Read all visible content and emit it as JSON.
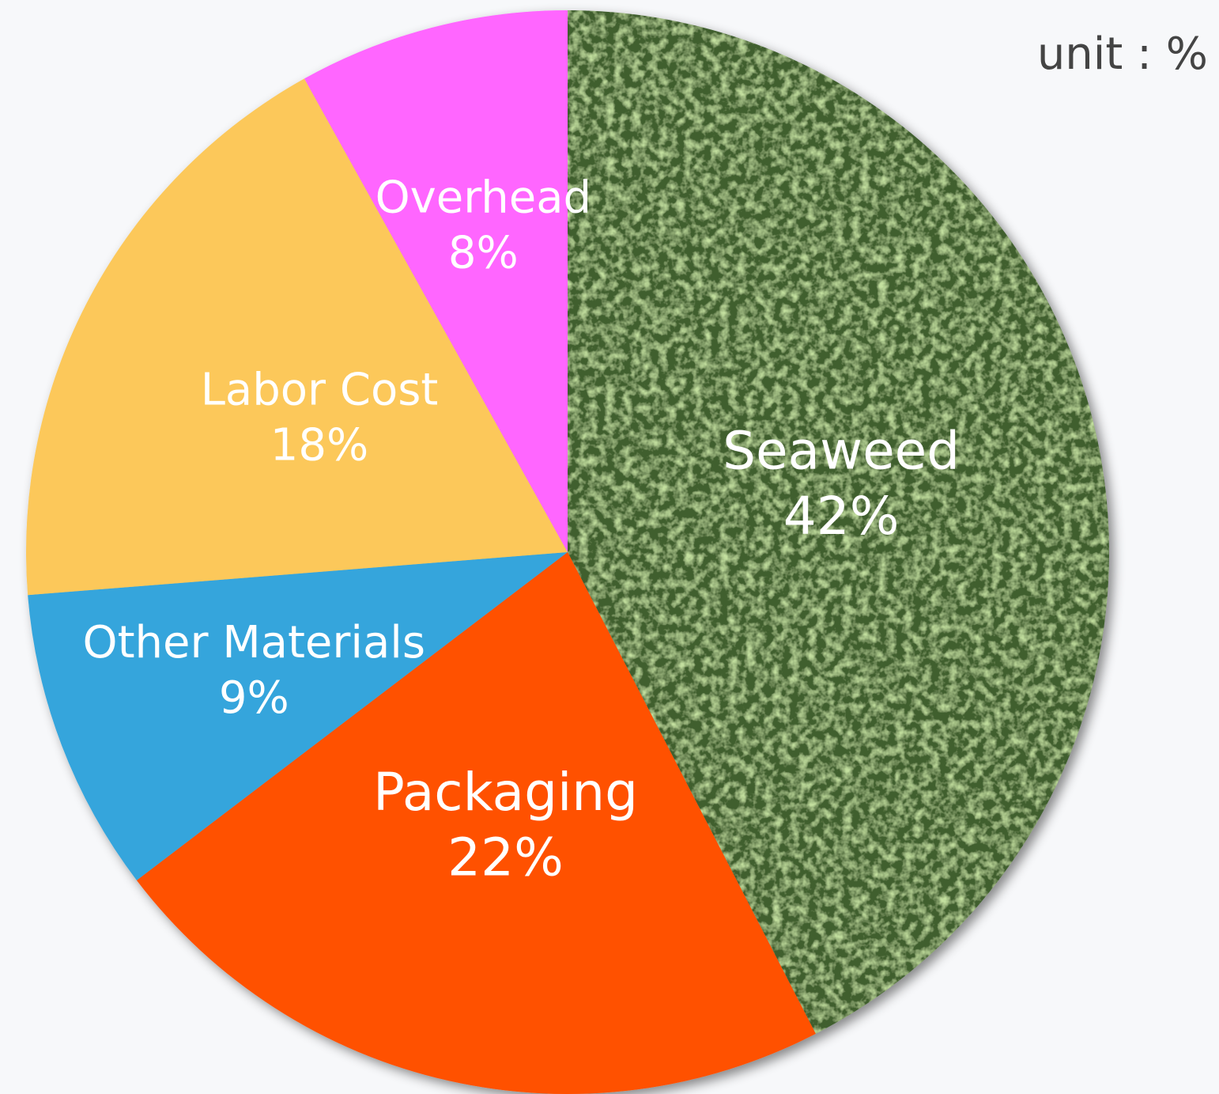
{
  "chart_data": {
    "type": "pie",
    "unit_note": "unit : %",
    "categories": [
      "Seaweed",
      "Packaging",
      "Other Materials",
      "Labor Cost",
      "Overhead"
    ],
    "values": [
      42,
      22,
      9,
      18,
      8
    ],
    "value_labels": [
      "42%",
      "22%",
      "9%",
      "18%",
      "8%"
    ],
    "colors": [
      "#3f5f2e",
      "#ff5100",
      "#36a5dc",
      "#fcc85a",
      "#ff66ff"
    ]
  }
}
